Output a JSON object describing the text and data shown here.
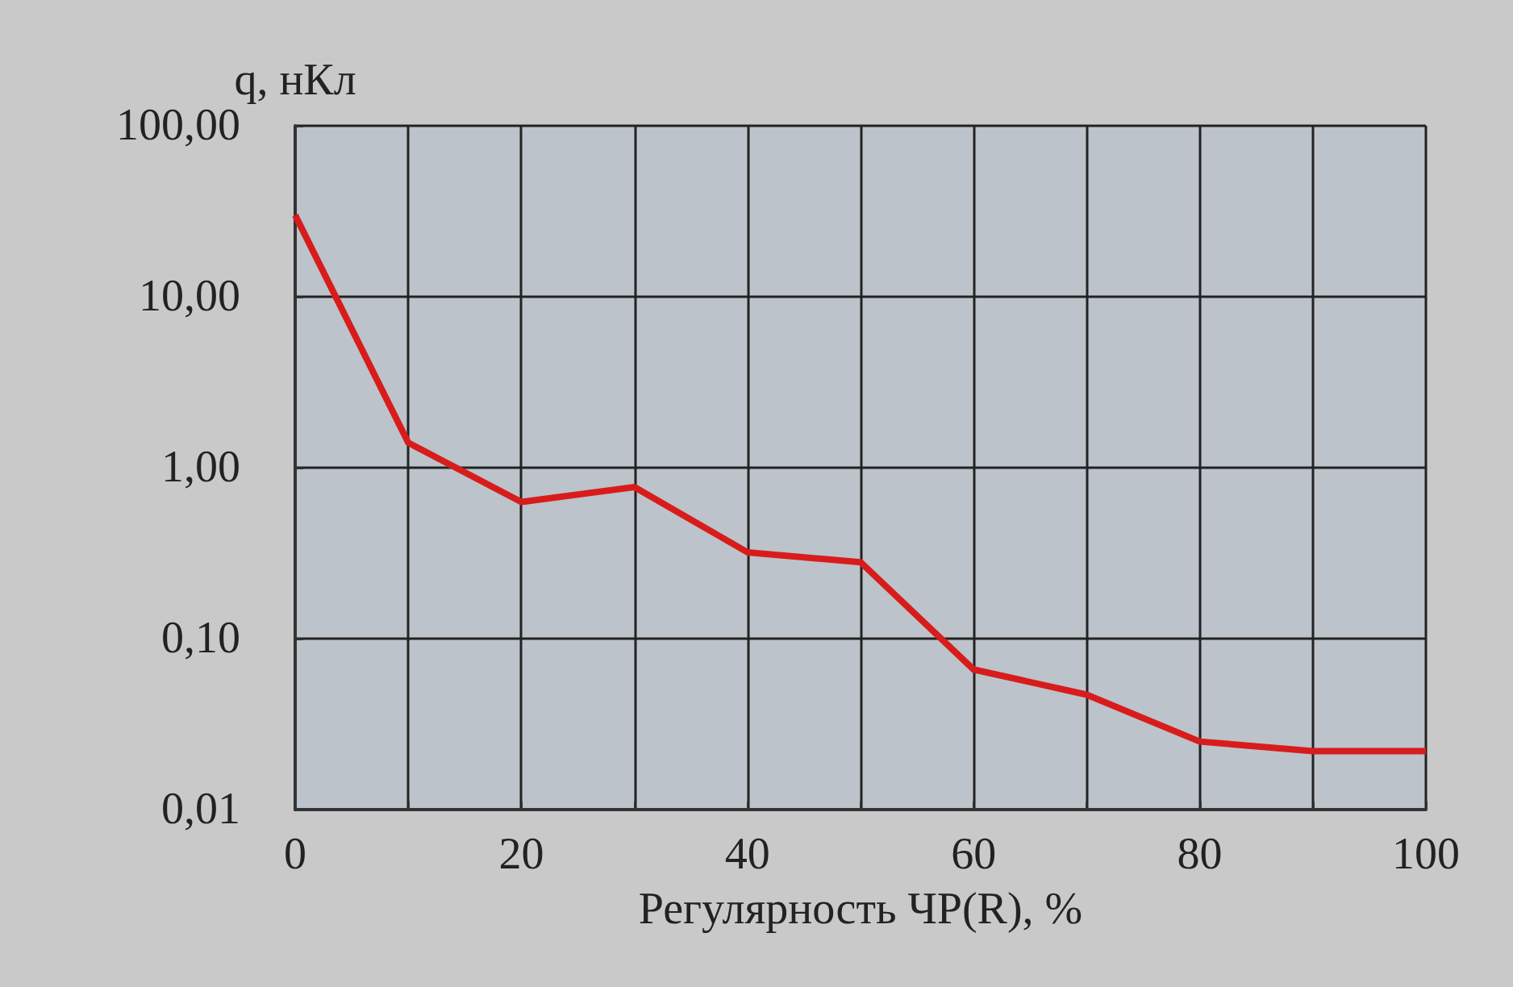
{
  "chart_data": {
    "type": "line",
    "xlabel": "Регулярность ЧР(R), %",
    "ylabel": "q, нКл",
    "x": [
      0,
      10,
      20,
      30,
      40,
      50,
      60,
      70,
      80,
      90,
      100
    ],
    "series": [
      {
        "color": "#d81c1c",
        "values": [
          30,
          1.4,
          0.63,
          0.77,
          0.32,
          0.28,
          0.066,
          0.047,
          0.025,
          0.022,
          0.022
        ]
      }
    ],
    "log": "y",
    "xlim": [
      0,
      100
    ],
    "ylim": [
      0.01,
      100
    ],
    "xticks": [
      0,
      {
        "value": 10,
        "label": null
      },
      20,
      {
        "value": 30,
        "label": null
      },
      40,
      {
        "value": 50,
        "label": null
      },
      60,
      {
        "value": 70,
        "label": null
      },
      80,
      {
        "value": 90,
        "label": null
      },
      100
    ],
    "yticks": [
      {
        "value": 0.01,
        "label": "0,01"
      },
      {
        "value": 0.1,
        "label": "0,10"
      },
      {
        "value": 1,
        "label": "1,00"
      },
      {
        "value": 10,
        "label": "10,00"
      },
      {
        "value": 100,
        "label": "100,00"
      }
    ],
    "grid": true,
    "marker": "none",
    "line_style": "solid"
  }
}
